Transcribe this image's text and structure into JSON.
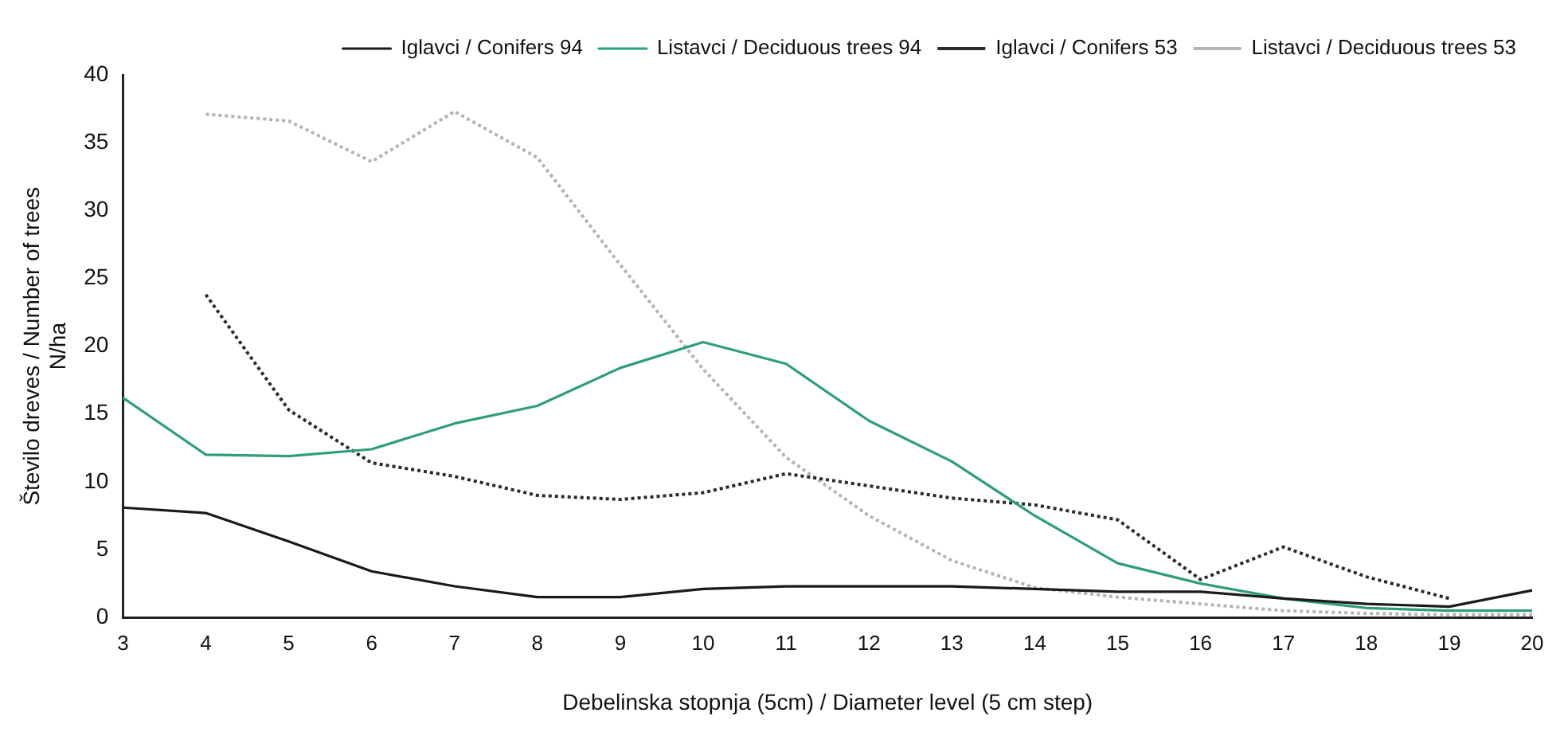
{
  "chart_data": {
    "type": "line",
    "xlabel": "Debelinska stopnja (5cm) / Diameter level (5 cm step)",
    "ylabel": "Število dreves / Number of trees\nN/ha",
    "categories": [
      "3",
      "4",
      "5",
      "6",
      "7",
      "8",
      "9",
      "10",
      "11",
      "12",
      "13",
      "14",
      "15",
      "16",
      "17",
      "18",
      "19",
      "20"
    ],
    "ylim": [
      0,
      40
    ],
    "yticks": [
      0,
      5,
      10,
      15,
      20,
      25,
      30,
      35,
      40
    ],
    "grid": false,
    "legend": "top right",
    "marker": "none",
    "series": [
      {
        "name": "Iglavci / Conifers 94",
        "color": "#1a1a1a",
        "line_style": "solid",
        "values": [
          8.1,
          7.7,
          5.6,
          3.4,
          2.3,
          1.5,
          1.5,
          2.1,
          2.3,
          2.3,
          2.3,
          2.1,
          1.9,
          1.9,
          1.4,
          1.0,
          0.8,
          2.0
        ]
      },
      {
        "name": "Listavci / Deciduous trees 94",
        "color": "#2e9e7a",
        "line_style": "solid",
        "values": [
          16.2,
          12,
          11.9,
          12.4,
          14.3,
          15.6,
          18.4,
          20.3,
          18.7,
          14.5,
          11.5,
          7.5,
          4,
          2.5,
          1.4,
          0.7,
          0.5,
          0.5
        ]
      },
      {
        "name": "Iglavci / Conifers 53",
        "color": "#2a2a2a",
        "line_style": "dotted",
        "values": [
          null,
          23.8,
          15.3,
          11.4,
          10.4,
          9.0,
          8.7,
          9.2,
          10.6,
          9.7,
          8.8,
          8.3,
          7.2,
          2.8,
          5.2,
          3,
          1.4,
          null
        ]
      },
      {
        "name": "Listavci / Deciduous trees 53",
        "color": "#b4b4b4",
        "line_style": "dotted",
        "values": [
          null,
          37.1,
          36.6,
          33.6,
          37.3,
          33.9,
          26,
          18.3,
          11.8,
          7.5,
          4.2,
          2.2,
          1.5,
          1.0,
          0.5,
          0.3,
          0.2,
          0.2
        ]
      }
    ]
  }
}
